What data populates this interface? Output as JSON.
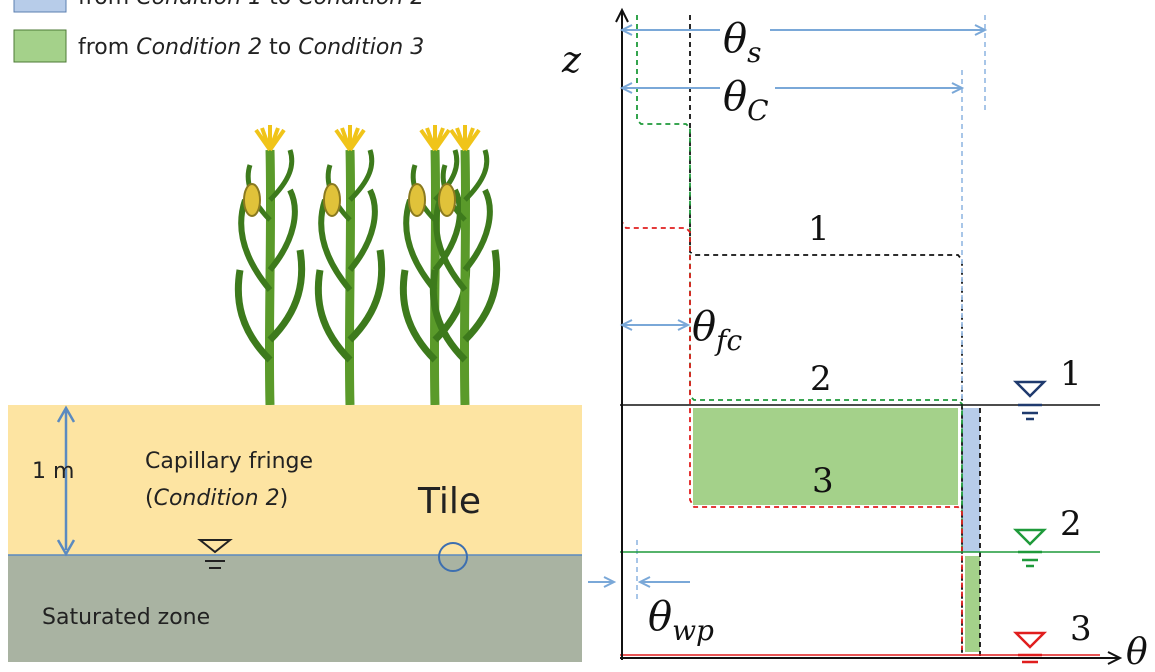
{
  "legend": [
    {
      "parts": [
        "from ",
        "Condition 1",
        " to ",
        "Condition 2"
      ]
    },
    {
      "parts": [
        "from ",
        "Condition 2",
        " to ",
        "Condition 3"
      ]
    }
  ],
  "soil": {
    "depth": "1 m",
    "fringe": "Capillary fringe",
    "fringe_condition": "Condition 2",
    "tile": "Tile",
    "saturated": "Saturated zone"
  },
  "axes": {
    "z": "z",
    "theta": "θ"
  },
  "thetas": {
    "s": {
      "symbol": "θ",
      "sub": "s"
    },
    "c": {
      "symbol": "θ",
      "sub": "C"
    },
    "fc": {
      "symbol": "θ",
      "sub": "fc"
    },
    "wp": {
      "symbol": "θ",
      "sub": "wp"
    }
  },
  "profiles": [
    "1",
    "2",
    "3"
  ],
  "water_tables": [
    "1",
    "2",
    "3"
  ]
}
